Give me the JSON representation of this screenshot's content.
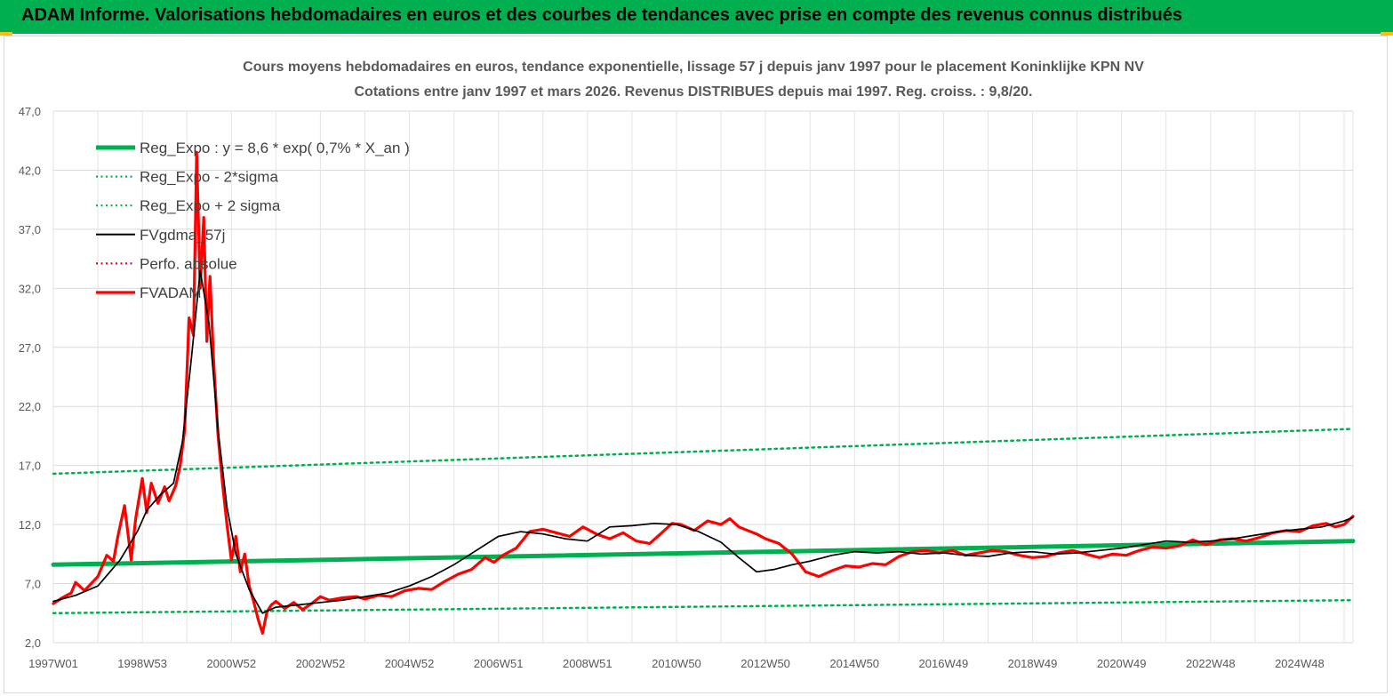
{
  "banner": {
    "title": "ADAM Informe. Valorisations hebdomadaires en euros et des courbes de tendances avec prise en compte des revenus connus distribués",
    "color": "#00b050",
    "accent": "#ffc000"
  },
  "chart_data": {
    "type": "line",
    "title": "Cours moyens hebdomadaires en euros, tendance exponentielle, lissage 57 j depuis janv 1997 pour le placement Koninklijke KPN NV",
    "subtitle": "Cotations entre janv 1997 et mars 2026. Revenus DISTRIBUES depuis mai 1997. Reg. croiss. : 9,8/20.",
    "xlabel": "",
    "ylabel": "",
    "xlim": [
      1997.0,
      2026.2
    ],
    "ylim": [
      2.0,
      47.0
    ],
    "grid": true,
    "legend_position": "top-left",
    "y_ticks": [
      "2,0",
      "7,0",
      "12,0",
      "17,0",
      "22,0",
      "27,0",
      "32,0",
      "37,0",
      "42,0",
      "47,0"
    ],
    "y_tick_values": [
      2,
      7,
      12,
      17,
      22,
      27,
      32,
      37,
      42,
      47
    ],
    "x_ticks": [
      "1997W01",
      "1998W53",
      "2000W52",
      "2002W52",
      "2004W52",
      "2006W51",
      "2008W51",
      "2010W50",
      "2012W50",
      "2014W50",
      "2016W49",
      "2018W49",
      "2020W49",
      "2022W48",
      "2024W48"
    ],
    "x_tick_values": [
      1997.0,
      1999.0,
      2001.0,
      2003.0,
      2005.0,
      2007.0,
      2009.0,
      2011.0,
      2013.0,
      2015.0,
      2017.0,
      2019.0,
      2021.0,
      2023.0,
      2025.0
    ],
    "legend": [
      {
        "name": "Reg_Expo : y = 8,6 * exp( 0,7% *  X_an )",
        "color": "#00b050",
        "style": "solid-thick"
      },
      {
        "name": "Reg_Expo - 2*sigma",
        "color": "#00b050",
        "style": "dotted"
      },
      {
        "name": "Reg_Expo + 2 sigma",
        "color": "#00b050",
        "style": "dotted"
      },
      {
        "name": "FVgdma_57j",
        "color": "#000000",
        "style": "solid-thin"
      },
      {
        "name": "Perfo. absolue",
        "color": "#ff0000",
        "style": "dotted"
      },
      {
        "name": "FVADAM",
        "color": "#ff0000",
        "style": "solid-thick"
      }
    ],
    "series": [
      {
        "name": "Reg_Expo : y = 8,6 * exp( 0,7% *  X_an )",
        "color": "#00b050",
        "x": [
          1997.0,
          2026.2
        ],
        "values": [
          8.6,
          10.6
        ]
      },
      {
        "name": "Reg_Expo - 2*sigma",
        "color": "#00b050",
        "x": [
          1997.0,
          2026.2
        ],
        "values": [
          4.5,
          5.6
        ]
      },
      {
        "name": "Reg_Expo + 2 sigma",
        "color": "#00b050",
        "x": [
          1997.0,
          2026.2
        ],
        "values": [
          16.3,
          20.1
        ]
      },
      {
        "name": "FVgdma_57j",
        "color": "#000000",
        "x": [
          1997.0,
          1997.5,
          1998.0,
          1998.5,
          1998.9,
          1999.1,
          1999.4,
          1999.7,
          1999.9,
          2000.1,
          2000.3,
          2000.5,
          2000.7,
          2000.9,
          2001.1,
          2001.4,
          2001.7,
          2002.0,
          2002.5,
          2003.0,
          2003.5,
          2004.0,
          2004.5,
          2005.0,
          2005.5,
          2006.0,
          2006.5,
          2007.0,
          2007.5,
          2008.0,
          2008.5,
          2009.0,
          2009.5,
          2010.0,
          2010.5,
          2011.0,
          2011.5,
          2012.0,
          2012.4,
          2012.8,
          2013.2,
          2013.6,
          2014.0,
          2014.5,
          2015.0,
          2015.5,
          2016.0,
          2016.5,
          2017.0,
          2017.5,
          2018.0,
          2018.5,
          2019.0,
          2019.5,
          2020.0,
          2020.5,
          2021.0,
          2021.5,
          2022.0,
          2022.5,
          2023.0,
          2023.5,
          2024.0,
          2024.5,
          2025.0,
          2025.5,
          2026.0,
          2026.2
        ],
        "values": [
          5.5,
          6.0,
          6.8,
          9.0,
          11.5,
          13.2,
          14.5,
          15.5,
          19.0,
          26.0,
          33.5,
          29.0,
          20.0,
          13.5,
          9.5,
          6.5,
          4.5,
          5.0,
          5.2,
          5.4,
          5.6,
          5.9,
          6.2,
          6.8,
          7.6,
          8.6,
          9.8,
          11.0,
          11.4,
          11.2,
          10.8,
          10.6,
          11.8,
          11.9,
          12.1,
          12.0,
          11.4,
          10.5,
          9.2,
          8.0,
          8.2,
          8.6,
          8.9,
          9.4,
          9.7,
          9.6,
          9.7,
          9.5,
          9.6,
          9.4,
          9.3,
          9.6,
          9.7,
          9.5,
          9.6,
          9.8,
          10.0,
          10.3,
          10.6,
          10.5,
          10.6,
          10.8,
          11.1,
          11.4,
          11.6,
          11.8,
          12.3,
          12.6
        ]
      },
      {
        "name": "Perfo. absolue",
        "color": "#ff0000",
        "x": [],
        "values": []
      },
      {
        "name": "FVADAM",
        "color": "#ff0000",
        "x": [
          1997.0,
          1997.2,
          1997.4,
          1997.5,
          1997.7,
          1997.9,
          1998.0,
          1998.2,
          1998.35,
          1998.45,
          1998.6,
          1998.75,
          1998.85,
          1999.0,
          1999.1,
          1999.2,
          1999.35,
          1999.5,
          1999.6,
          1999.75,
          1999.85,
          1999.95,
          2000.05,
          2000.15,
          2000.22,
          2000.3,
          2000.38,
          2000.45,
          2000.52,
          2000.6,
          2000.7,
          2000.8,
          2000.9,
          2001.0,
          2001.1,
          2001.2,
          2001.3,
          2001.4,
          2001.5,
          2001.6,
          2001.7,
          2001.8,
          2001.9,
          2002.0,
          2002.2,
          2002.4,
          2002.6,
          2002.8,
          2003.0,
          2003.2,
          2003.5,
          2003.8,
          2004.0,
          2004.3,
          2004.6,
          2004.9,
          2005.2,
          2005.5,
          2005.8,
          2006.1,
          2006.4,
          2006.7,
          2006.9,
          2007.1,
          2007.4,
          2007.7,
          2008.0,
          2008.3,
          2008.6,
          2008.9,
          2009.2,
          2009.5,
          2009.8,
          2010.1,
          2010.4,
          2010.7,
          2010.9,
          2011.1,
          2011.4,
          2011.7,
          2012.0,
          2012.2,
          2012.4,
          2012.6,
          2012.8,
          2013.0,
          2013.3,
          2013.6,
          2013.9,
          2014.2,
          2014.5,
          2014.8,
          2015.1,
          2015.4,
          2015.7,
          2016.0,
          2016.3,
          2016.6,
          2016.9,
          2017.2,
          2017.5,
          2017.8,
          2018.1,
          2018.4,
          2018.7,
          2019.0,
          2019.3,
          2019.6,
          2019.9,
          2020.2,
          2020.5,
          2020.8,
          2021.1,
          2021.4,
          2021.7,
          2022.0,
          2022.3,
          2022.6,
          2022.9,
          2023.2,
          2023.5,
          2023.8,
          2024.1,
          2024.4,
          2024.7,
          2025.0,
          2025.3,
          2025.6,
          2025.8,
          2026.0,
          2026.2
        ],
        "values": [
          5.3,
          5.8,
          6.2,
          7.1,
          6.4,
          7.2,
          7.6,
          9.4,
          8.9,
          11.0,
          13.6,
          9.0,
          12.5,
          15.9,
          13.0,
          15.5,
          13.8,
          15.2,
          14.0,
          15.3,
          17.0,
          20.0,
          29.5,
          28.0,
          43.5,
          32.0,
          38.0,
          27.5,
          33.0,
          26.0,
          19.5,
          15.5,
          12.0,
          9.0,
          11.0,
          8.0,
          9.5,
          6.8,
          5.5,
          4.0,
          2.8,
          4.6,
          5.2,
          5.5,
          4.9,
          5.4,
          4.8,
          5.3,
          5.9,
          5.6,
          5.8,
          5.9,
          5.7,
          6.0,
          5.9,
          6.4,
          6.6,
          6.5,
          7.2,
          7.8,
          8.2,
          9.2,
          8.8,
          9.4,
          10.0,
          11.4,
          11.6,
          11.3,
          11.0,
          11.8,
          11.2,
          10.8,
          11.3,
          10.6,
          10.4,
          11.4,
          12.1,
          12.0,
          11.5,
          12.3,
          12.0,
          12.5,
          11.8,
          11.5,
          11.2,
          10.8,
          10.4,
          9.5,
          8.0,
          7.6,
          8.1,
          8.5,
          8.4,
          8.7,
          8.6,
          9.3,
          9.7,
          9.8,
          9.6,
          9.8,
          9.4,
          9.6,
          9.8,
          9.7,
          9.4,
          9.2,
          9.3,
          9.6,
          9.8,
          9.5,
          9.2,
          9.5,
          9.4,
          9.8,
          10.1,
          10.0,
          10.2,
          10.7,
          10.3,
          10.7,
          10.8,
          10.6,
          10.9,
          11.3,
          11.5,
          11.4,
          11.9,
          12.1,
          11.8,
          12.0,
          12.7
        ]
      }
    ]
  }
}
